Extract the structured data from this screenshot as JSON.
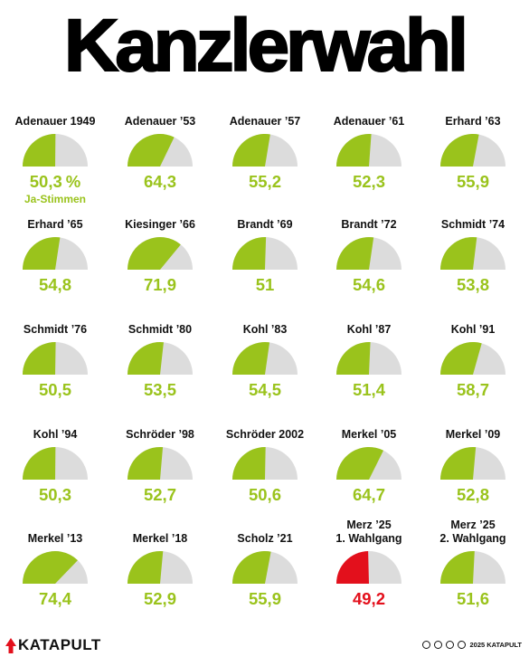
{
  "title": "Kanzlerwahl",
  "chart_data": {
    "type": "pie",
    "subtype": "half-donut gauges",
    "unit_label": "%",
    "series_label": "Ja-Stimmen",
    "items": [
      {
        "label": "Adenauer 1949",
        "value": 50.3,
        "value_text": "50,3"
      },
      {
        "label": "Adenauer ’53",
        "value": 64.3,
        "value_text": "64,3"
      },
      {
        "label": "Adenauer ’57",
        "value": 55.2,
        "value_text": "55,2"
      },
      {
        "label": "Adenauer ’61",
        "value": 52.3,
        "value_text": "52,3"
      },
      {
        "label": "Erhard ’63",
        "value": 55.9,
        "value_text": "55,9"
      },
      {
        "label": "Erhard ’65",
        "value": 54.8,
        "value_text": "54,8"
      },
      {
        "label": "Kiesinger ’66",
        "value": 71.9,
        "value_text": "71,9"
      },
      {
        "label": "Brandt ’69",
        "value": 51,
        "value_text": "51"
      },
      {
        "label": "Brandt ’72",
        "value": 54.6,
        "value_text": "54,6"
      },
      {
        "label": "Schmidt ’74",
        "value": 53.8,
        "value_text": "53,8"
      },
      {
        "label": "Schmidt ’76",
        "value": 50.5,
        "value_text": "50,5"
      },
      {
        "label": "Schmidt ’80",
        "value": 53.5,
        "value_text": "53,5"
      },
      {
        "label": "Kohl ’83",
        "value": 54.5,
        "value_text": "54,5"
      },
      {
        "label": "Kohl ’87",
        "value": 51.4,
        "value_text": "51,4"
      },
      {
        "label": "Kohl ’91",
        "value": 58.7,
        "value_text": "58,7"
      },
      {
        "label": "Kohl ’94",
        "value": 50.3,
        "value_text": "50,3"
      },
      {
        "label": "Schröder ’98",
        "value": 52.7,
        "value_text": "52,7"
      },
      {
        "label": "Schröder 2002",
        "value": 50.6,
        "value_text": "50,6"
      },
      {
        "label": "Merkel ’05",
        "value": 64.7,
        "value_text": "64,7"
      },
      {
        "label": "Merkel ’09",
        "value": 52.8,
        "value_text": "52,8"
      },
      {
        "label": "Merkel ’13",
        "value": 74.4,
        "value_text": "74,4"
      },
      {
        "label": "Merkel ’18",
        "value": 52.9,
        "value_text": "52,9"
      },
      {
        "label": "Scholz ’21",
        "value": 55.9,
        "value_text": "55,9"
      },
      {
        "label": [
          "Merz ’25",
          "1. Wahlgang"
        ],
        "value": 49.2,
        "value_text": "49,2",
        "highlight": true
      },
      {
        "label": [
          "Merz ’25",
          "2. Wahlgang"
        ],
        "value": 51.6,
        "value_text": "51,6"
      }
    ],
    "colors": {
      "yes": "#9ac31c",
      "rest": "#dcdcdc",
      "failed": "#e3101c"
    }
  },
  "footer": {
    "logo_text": "KATAPULT",
    "credit": "2025 KATAPULT",
    "license_icons": [
      "cc-icon",
      "by-icon",
      "nc-icon",
      "nd-icon"
    ]
  }
}
